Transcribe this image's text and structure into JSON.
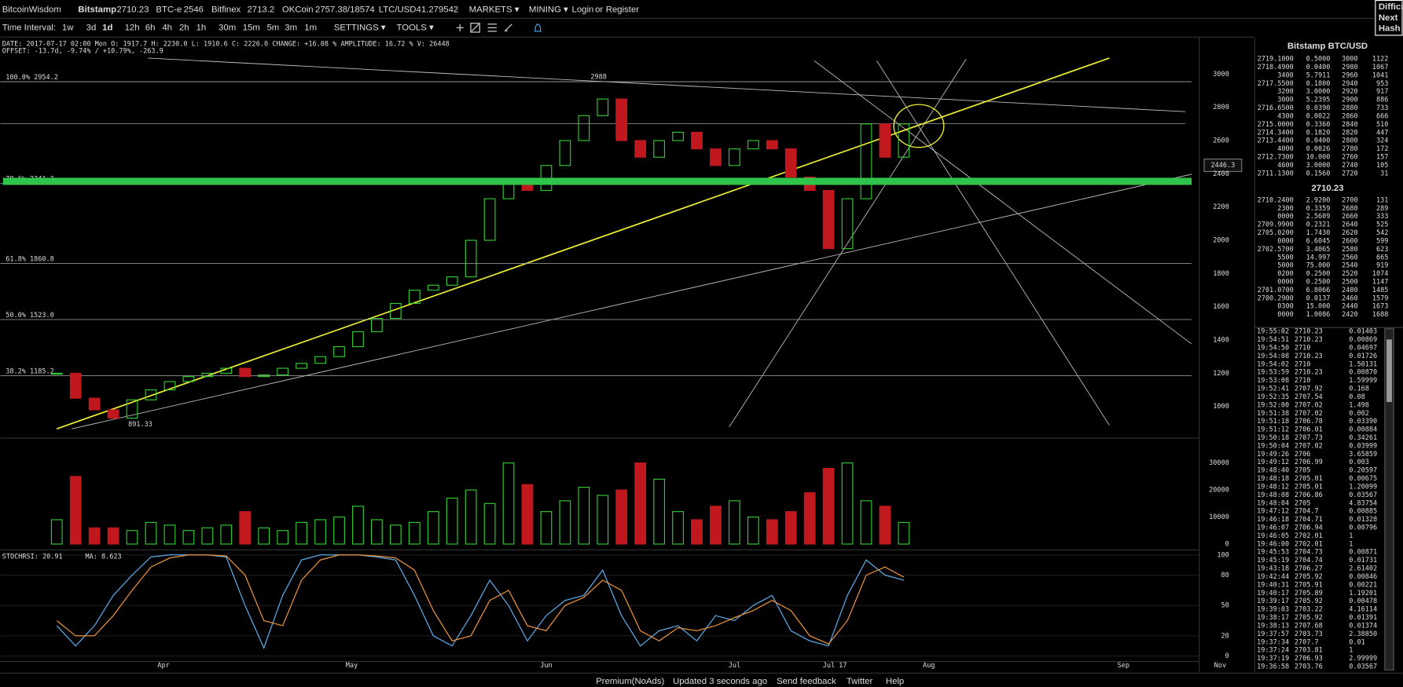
{
  "header": {
    "brand": "BitcoinWisdom",
    "exchanges": [
      {
        "name": "Bitstamp",
        "price": "2710.23"
      },
      {
        "name": "BTC-e",
        "price": "2546"
      },
      {
        "name": "Bitfinex",
        "price": "2713.2"
      },
      {
        "name": "OKCoin",
        "price": "2757.38/18574"
      },
      {
        "name": "LTC/USD",
        "price": "41.279542"
      }
    ],
    "menus": [
      "MARKETS ▾",
      "MINING ▾"
    ],
    "login": "Login",
    "or": "or",
    "register": "Register",
    "side": [
      "Difficu",
      "Next",
      "Hash"
    ]
  },
  "toolbar": {
    "label": "Time Interval:",
    "intervals": [
      "1w",
      "3d",
      "1d",
      "12h",
      "6h",
      "4h",
      "2h",
      "1h",
      "30m",
      "15m",
      "5m",
      "3m",
      "1m"
    ],
    "active": 2,
    "settings": "SETTINGS ▾",
    "tools": "TOOLS ▾"
  },
  "info": {
    "line1": "DATE: 2017-07-17 02:00 Mon   O: 1917.7   H: 2230.0   L: 1910.6   C: 2226.0   CHANGE: +16.08 %   AMPLITUDE: 16.72 %   V: 26448",
    "line2": "OFFSET: -13.7d, -9.74% / +10.79%, -263.9"
  },
  "chart_data": {
    "type": "candlestick",
    "up_color": "#33cc33",
    "down_color": "#c0181c",
    "xlim": [
      "2017-03-06",
      "2017-09-13"
    ],
    "xticks": [
      {
        "value": "2017-04-01",
        "label": "Apr"
      },
      {
        "value": "2017-05-01",
        "label": "May"
      },
      {
        "value": "2017-06-01",
        "label": "Jun"
      },
      {
        "value": "2017-07-01",
        "label": "Jul"
      },
      {
        "value": "2017-07-17",
        "label": "Jul 17"
      },
      {
        "value": "2017-08-01",
        "label": "Aug"
      },
      {
        "value": "2017-09-01",
        "label": "Sep"
      }
    ],
    "corner_label": "Nov",
    "x": [
      "2017-03-15",
      "2017-03-18",
      "2017-03-21",
      "2017-03-24",
      "2017-03-27",
      "2017-03-30",
      "2017-04-02",
      "2017-04-05",
      "2017-04-08",
      "2017-04-11",
      "2017-04-14",
      "2017-04-17",
      "2017-04-20",
      "2017-04-23",
      "2017-04-26",
      "2017-04-29",
      "2017-05-02",
      "2017-05-05",
      "2017-05-08",
      "2017-05-11",
      "2017-05-14",
      "2017-05-17",
      "2017-05-20",
      "2017-05-23",
      "2017-05-26",
      "2017-05-29",
      "2017-06-01",
      "2017-06-04",
      "2017-06-07",
      "2017-06-10",
      "2017-06-13",
      "2017-06-16",
      "2017-06-19",
      "2017-06-22",
      "2017-06-25",
      "2017-06-28",
      "2017-07-01",
      "2017-07-04",
      "2017-07-07",
      "2017-07-10",
      "2017-07-13",
      "2017-07-16",
      "2017-07-19",
      "2017-07-22",
      "2017-07-25",
      "2017-07-28"
    ],
    "closes": [
      1200,
      1050,
      980,
      930,
      1040,
      1100,
      1150,
      1180,
      1200,
      1230,
      1180,
      1190,
      1230,
      1260,
      1300,
      1360,
      1450,
      1530,
      1620,
      1700,
      1730,
      1780,
      2000,
      2250,
      2350,
      2300,
      2450,
      2600,
      2750,
      2850,
      2600,
      2500,
      2600,
      2650,
      2550,
      2450,
      2550,
      2600,
      2550,
      2380,
      2300,
      1950,
      2250,
      2700,
      2500,
      2700
    ],
    "ylim": [
      812,
      3220
    ],
    "yticks": [
      1000,
      1200,
      1400,
      1600,
      1800,
      2000,
      2200,
      2400,
      2600,
      2800,
      3000
    ],
    "fib_levels": [
      {
        "value": 2954.2,
        "label": "100.0% 2954.2"
      },
      {
        "value": 2341.3,
        "label": "78.6% 2341.3"
      },
      {
        "value": 1860.8,
        "label": "61.8% 1860.8"
      },
      {
        "value": 1523.0,
        "label": "50.0% 1523.0"
      },
      {
        "value": 1185.2,
        "label": "38.2% 1185.2"
      }
    ],
    "annotations": {
      "high": "2988",
      "low": "891.33",
      "cursor": "2446.3"
    },
    "volumes": [
      9000,
      25000,
      6000,
      6000,
      5000,
      8000,
      7000,
      5000,
      6000,
      7000,
      12000,
      6000,
      5000,
      8000,
      9000,
      10000,
      14000,
      9000,
      7000,
      8000,
      12000,
      17000,
      20000,
      15000,
      30000,
      22000,
      12000,
      16000,
      21000,
      18000,
      20000,
      30000,
      24000,
      12000,
      9000,
      14000,
      16000,
      10000,
      9000,
      12000,
      19000,
      28000,
      30000,
      16000,
      14000,
      8000
    ],
    "vol_ylim": [
      0,
      38000
    ],
    "vol_yticks": [
      0,
      10000,
      20000,
      30000
    ],
    "stoch": {
      "label": "STOCHRSI: 20.91",
      "ma_label": "MA: 8.623",
      "ylim": [
        -5,
        105
      ],
      "yticks": [
        0,
        20,
        50,
        80,
        100
      ],
      "series": [
        {
          "color": "#5aa9e6",
          "values": [
            30,
            10,
            30,
            60,
            80,
            98,
            100,
            100,
            100,
            98,
            50,
            8,
            60,
            95,
            100,
            100,
            100,
            98,
            95,
            60,
            20,
            10,
            40,
            75,
            50,
            15,
            40,
            55,
            60,
            85,
            40,
            10,
            25,
            30,
            15,
            40,
            35,
            50,
            60,
            25,
            15,
            10,
            60,
            95,
            80,
            75
          ]
        },
        {
          "color": "#e8913a",
          "values": [
            35,
            20,
            20,
            40,
            65,
            88,
            97,
            100,
            100,
            99,
            80,
            35,
            30,
            75,
            95,
            100,
            100,
            99,
            97,
            85,
            45,
            15,
            20,
            55,
            65,
            30,
            25,
            50,
            58,
            75,
            65,
            25,
            15,
            28,
            25,
            30,
            38,
            45,
            55,
            45,
            20,
            12,
            35,
            80,
            88,
            78
          ]
        }
      ]
    }
  },
  "orderbook": {
    "title": "Bitstamp BTC/USD",
    "last": "2710.23",
    "asks": [
      [
        "2719.1000",
        "0.5000",
        "3000",
        "1122"
      ],
      [
        "2718.4900",
        "0.0400",
        "2980",
        "1067"
      ],
      [
        "3400",
        "5.7911",
        "2960",
        "1041"
      ],
      [
        "2717.5500",
        "0.1800",
        "2940",
        "953"
      ],
      [
        "3200",
        "3.0000",
        "2920",
        "917"
      ],
      [
        "3000",
        "5.2395",
        "2900",
        "886"
      ],
      [
        "2716.6500",
        "0.0390",
        "2880",
        "733"
      ],
      [
        "4300",
        "0.0022",
        "2860",
        "666"
      ],
      [
        "2715.0000",
        "0.3360",
        "2840",
        "510"
      ],
      [
        "2714.3400",
        "0.1820",
        "2820",
        "447"
      ],
      [
        "2713.4400",
        "0.0400",
        "2800",
        "324"
      ],
      [
        "4000",
        "0.0026",
        "2780",
        "172"
      ],
      [
        "2712.7300",
        "10.000",
        "2760",
        "157"
      ],
      [
        "4600",
        "3.0000",
        "2740",
        "105"
      ],
      [
        "2711.1300",
        "0.1560",
        "2720",
        "31"
      ]
    ],
    "bids": [
      [
        "2710.2400",
        "2.9200",
        "2700",
        "131"
      ],
      [
        "2300",
        "0.3359",
        "2680",
        "289"
      ],
      [
        "0000",
        "2.5609",
        "2660",
        "333"
      ],
      [
        "2709.9900",
        "0.2321",
        "2640",
        "525"
      ],
      [
        "2705.0200",
        "1.7430",
        "2620",
        "542"
      ],
      [
        "0000",
        "6.6045",
        "2600",
        "599"
      ],
      [
        "2702.5700",
        "3.4065",
        "2580",
        "623"
      ],
      [
        "5500",
        "14.997",
        "2560",
        "665"
      ],
      [
        "5000",
        "75.000",
        "2540",
        "919"
      ],
      [
        "0200",
        "0.2500",
        "2520",
        "1074"
      ],
      [
        "0000",
        "0.2500",
        "2500",
        "1147"
      ],
      [
        "2701.0700",
        "6.8066",
        "2480",
        "1485"
      ],
      [
        "2700.2900",
        "0.0137",
        "2460",
        "1579"
      ],
      [
        "0300",
        "15.000",
        "2440",
        "1673"
      ],
      [
        "0000",
        "1.0086",
        "2420",
        "1688"
      ]
    ]
  },
  "trades": {
    "rows": [
      [
        "19:55:02",
        "2710.23",
        "0.01403"
      ],
      [
        "19:54:51",
        "2710.23",
        "0.00869"
      ],
      [
        "19:54:50",
        "2710",
        "0.04697"
      ],
      [
        "19:54:08",
        "2710.23",
        "0.01726"
      ],
      [
        "19:54:02",
        "2710",
        "1.50131"
      ],
      [
        "19:53:59",
        "2710.23",
        "0.00870"
      ],
      [
        "19:53:08",
        "2710",
        "1.59999"
      ],
      [
        "19:52:41",
        "2707.92",
        "0.168"
      ],
      [
        "19:52:35",
        "2707.54",
        "0.08"
      ],
      [
        "19:52:00",
        "2707.02",
        "1.498"
      ],
      [
        "19:51:38",
        "2707.02",
        "0.002"
      ],
      [
        "19:51:18",
        "2706.78",
        "0.03390"
      ],
      [
        "19:51:12",
        "2706.01",
        "0.00884"
      ],
      [
        "19:50:18",
        "2707.73",
        "0.34261"
      ],
      [
        "19:50:04",
        "2707.02",
        "0.03999"
      ],
      [
        "19:49:26",
        "2706",
        "3.65859"
      ],
      [
        "19:49:12",
        "2706.99",
        "0.003"
      ],
      [
        "19:48:40",
        "2705",
        "0.20597"
      ],
      [
        "19:48:18",
        "2705.01",
        "0.00675"
      ],
      [
        "19:48:12",
        "2705.01",
        "1.20099"
      ],
      [
        "19:48:08",
        "2706.86",
        "0.03567"
      ],
      [
        "19:48:04",
        "2705",
        "4.83754"
      ],
      [
        "19:47:12",
        "2704.7",
        "0.00885"
      ],
      [
        "19:46:18",
        "2704.71",
        "0.01328"
      ],
      [
        "19:46:07",
        "2706.94",
        "0.00796"
      ],
      [
        "19:46:05",
        "2702.01",
        "1"
      ],
      [
        "19:46:00",
        "2702.01",
        "1"
      ],
      [
        "19:45:53",
        "2704.73",
        "0.00871"
      ],
      [
        "19:45:19",
        "2704.74",
        "0.01731"
      ],
      [
        "19:43:18",
        "2706.27",
        "2.61402"
      ],
      [
        "19:42:44",
        "2705.92",
        "0.00846"
      ],
      [
        "19:40:31",
        "2705.91",
        "0.00221"
      ],
      [
        "19:40:17",
        "2705.89",
        "1.19201"
      ],
      [
        "19:39:17",
        "2705.92",
        "0.00478"
      ],
      [
        "19:39:03",
        "2703.22",
        "4.16114"
      ],
      [
        "19:38:17",
        "2705.92",
        "0.01391"
      ],
      [
        "19:38:13",
        "2707.68",
        "0.01374"
      ],
      [
        "19:37:57",
        "2703.73",
        "2.38850"
      ],
      [
        "19:37:34",
        "2707.7",
        "0.01"
      ],
      [
        "19:37:24",
        "2703.81",
        "1"
      ],
      [
        "19:37:19",
        "2706.93",
        "2.99999"
      ],
      [
        "19:36:58",
        "2703.76",
        "0.03567"
      ]
    ],
    "colors": [
      "#3c3",
      "#3c3",
      "#e33",
      "#3c3",
      "#3c3",
      "#3c3",
      "#3c3",
      "#3c3",
      "#e33",
      "#3c3",
      "#3c3",
      "#3c3",
      "#3c3",
      "#3c3",
      "#3c3",
      "#e33",
      "#3c3",
      "#e33",
      "#3c3",
      "#3c3",
      "#3c3",
      "#3c3",
      "#3c3",
      "#3c3",
      "#3c3",
      "#e33",
      "#e33",
      "#e33",
      "#e33",
      "#3c3",
      "#3c3",
      "#3c3",
      "#3c3",
      "#3c3",
      "#e33",
      "#3c3",
      "#3c3",
      "#e33",
      "#3c3",
      "#e33",
      "#3c3",
      "#e33"
    ]
  },
  "footer": [
    "Premium(NoAds)",
    "Updated 3 seconds ago",
    "Send feedback",
    "Twitter",
    "Help"
  ]
}
